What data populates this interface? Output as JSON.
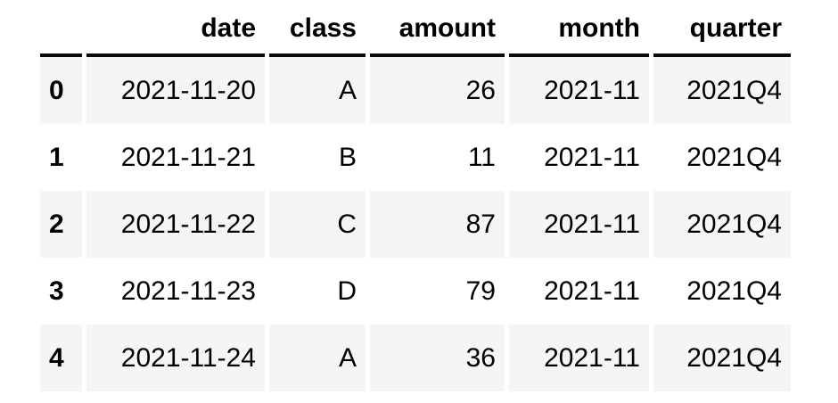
{
  "table": {
    "index_header": "",
    "columns": [
      "date",
      "class",
      "amount",
      "month",
      "quarter"
    ],
    "rows": [
      {
        "index": "0",
        "cells": [
          "2021-11-20",
          "A",
          "26",
          "2021-11",
          "2021Q4"
        ]
      },
      {
        "index": "1",
        "cells": [
          "2021-11-21",
          "B",
          "11",
          "2021-11",
          "2021Q4"
        ]
      },
      {
        "index": "2",
        "cells": [
          "2021-11-22",
          "C",
          "87",
          "2021-11",
          "2021Q4"
        ]
      },
      {
        "index": "3",
        "cells": [
          "2021-11-23",
          "D",
          "79",
          "2021-11",
          "2021Q4"
        ]
      },
      {
        "index": "4",
        "cells": [
          "2021-11-24",
          "A",
          "36",
          "2021-11",
          "2021Q4"
        ]
      }
    ],
    "colors": {
      "stripe_row_background": "#f5f5f5",
      "header_rule": "#0a0a0a",
      "text": "#000000",
      "page_background": "#ffffff"
    }
  },
  "chart_data": {
    "type": "table",
    "columns": [
      "date",
      "class",
      "amount",
      "month",
      "quarter"
    ],
    "index": [
      0,
      1,
      2,
      3,
      4
    ],
    "rows": [
      [
        "2021-11-20",
        "A",
        26,
        "2021-11",
        "2021Q4"
      ],
      [
        "2021-11-21",
        "B",
        11,
        "2021-11",
        "2021Q4"
      ],
      [
        "2021-11-22",
        "C",
        87,
        "2021-11",
        "2021Q4"
      ],
      [
        "2021-11-23",
        "D",
        79,
        "2021-11",
        "2021Q4"
      ],
      [
        "2021-11-24",
        "A",
        36,
        "2021-11",
        "2021Q4"
      ]
    ]
  }
}
